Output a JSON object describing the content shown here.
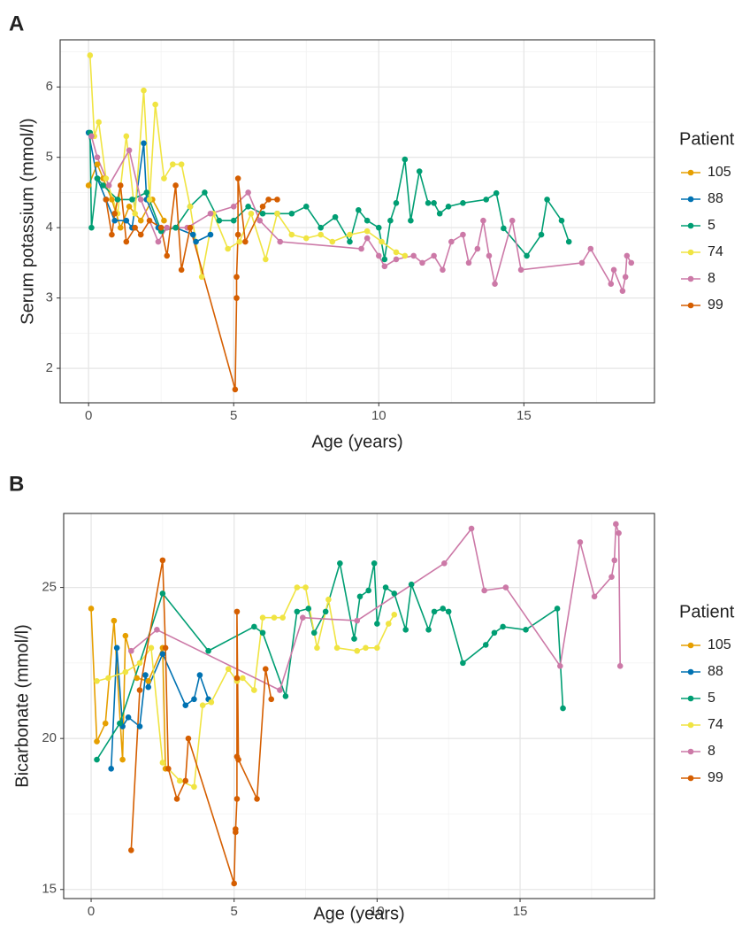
{
  "chart_data": [
    {
      "type": "line",
      "tag": "A",
      "y_label": "Serum potassium (mmol/l)",
      "x_label": "Age (years)",
      "legend_title": "Patient",
      "xlim": [
        -0.98,
        19.5
      ],
      "ylim": [
        1.51,
        6.67
      ],
      "xticks": [
        0,
        5,
        10,
        15
      ],
      "yticks": [
        2,
        3,
        4,
        5,
        6
      ],
      "grid": true,
      "legend": "right",
      "series": [
        {
          "name": "105",
          "color": "#E69F00",
          "x": [
            0.0,
            0.3,
            0.5,
            0.8,
            1.1,
            1.4,
            1.8,
            2.2,
            2.6
          ],
          "values": [
            4.6,
            4.9,
            4.7,
            4.4,
            4.0,
            4.3,
            4.1,
            4.4,
            4.1
          ]
        },
        {
          "name": "88",
          "color": "#0072B2",
          "x": [
            0.0,
            0.3,
            0.6,
            0.9,
            1.3,
            1.5,
            1.9,
            2.0,
            2.4,
            3.0,
            3.6,
            3.7,
            4.2
          ],
          "values": [
            5.35,
            4.7,
            4.4,
            4.1,
            4.1,
            4.0,
            5.2,
            4.4,
            4.0,
            4.0,
            3.9,
            3.8,
            3.9
          ]
        },
        {
          "name": "5",
          "color": "#009E73",
          "x": [
            0.05,
            0.1,
            0.3,
            0.5,
            1.0,
            1.5,
            2.0,
            2.5,
            3.0,
            3.5,
            4.0,
            4.5,
            5.0,
            5.5,
            6.0,
            6.5,
            7.0,
            7.5,
            8.0,
            8.5,
            9.0,
            9.3,
            9.6,
            10.0,
            10.2,
            10.4,
            10.6,
            10.9,
            11.1,
            11.4,
            11.7,
            11.9,
            12.1,
            12.4,
            12.9,
            13.7,
            14.05,
            14.3,
            15.1,
            15.6,
            15.8,
            16.3,
            16.55
          ],
          "values": [
            5.35,
            4.0,
            4.7,
            4.6,
            4.4,
            4.4,
            4.5,
            3.95,
            4.0,
            4.3,
            4.5,
            4.1,
            4.1,
            4.3,
            4.2,
            4.2,
            4.2,
            4.3,
            4.0,
            4.15,
            3.8,
            4.25,
            4.1,
            4.0,
            3.55,
            4.1,
            4.35,
            4.97,
            4.1,
            4.8,
            4.35,
            4.35,
            4.2,
            4.3,
            4.35,
            4.4,
            4.49,
            3.99,
            3.6,
            3.9,
            4.4,
            4.1,
            3.8
          ]
        },
        {
          "name": "74",
          "color": "#F0E442",
          "x": [
            0.05,
            0.2,
            0.35,
            0.6,
            1.0,
            1.3,
            1.6,
            1.9,
            2.1,
            2.3,
            2.6,
            2.9,
            3.2,
            3.5,
            3.9,
            4.3,
            4.8,
            5.2,
            5.6,
            6.1,
            6.5,
            7.0,
            7.5,
            8.0,
            8.4,
            9.0,
            9.6,
            10.1,
            10.6,
            10.9
          ],
          "values": [
            6.45,
            5.3,
            5.5,
            4.7,
            4.2,
            5.3,
            4.2,
            5.95,
            4.4,
            5.75,
            4.7,
            4.9,
            4.9,
            4.3,
            3.3,
            4.2,
            3.7,
            3.8,
            4.2,
            3.55,
            4.2,
            3.9,
            3.85,
            3.9,
            3.8,
            3.9,
            3.95,
            3.8,
            3.65,
            3.6
          ]
        },
        {
          "name": "8",
          "color": "#CC79A7",
          "x": [
            0.1,
            0.3,
            0.7,
            1.4,
            1.8,
            2.4,
            2.7,
            3.4,
            4.2,
            5.0,
            5.5,
            5.9,
            6.6,
            9.4,
            9.6,
            10.0,
            10.2,
            10.6,
            11.2,
            11.5,
            11.9,
            12.2,
            12.5,
            12.9,
            13.1,
            13.4,
            13.6,
            13.8,
            14.0,
            14.6,
            14.9,
            17.0,
            17.3,
            18.0,
            18.1,
            18.4,
            18.5,
            18.55,
            18.7
          ],
          "values": [
            5.3,
            5.0,
            4.6,
            5.1,
            4.4,
            3.8,
            4.0,
            4.0,
            4.2,
            4.3,
            4.5,
            4.1,
            3.8,
            3.7,
            3.85,
            3.6,
            3.45,
            3.55,
            3.6,
            3.5,
            3.6,
            3.4,
            3.8,
            3.9,
            3.5,
            3.7,
            4.1,
            3.6,
            3.2,
            4.1,
            3.4,
            3.5,
            3.7,
            3.2,
            3.4,
            3.1,
            3.3,
            3.6,
            3.5
          ]
        },
        {
          "name": "99",
          "color": "#D55E00",
          "x": [
            0.6,
            0.8,
            0.9,
            1.1,
            1.3,
            1.6,
            1.8,
            2.1,
            2.5,
            2.7,
            3.0,
            3.2,
            3.5,
            5.05,
            5.1,
            5.1,
            5.15,
            5.15,
            5.4,
            6.0,
            6.2,
            6.5
          ],
          "values": [
            4.4,
            3.9,
            4.2,
            4.6,
            3.8,
            4.0,
            3.9,
            4.1,
            4.0,
            3.6,
            4.6,
            3.4,
            4.0,
            1.7,
            3.0,
            3.3,
            3.9,
            4.7,
            3.8,
            4.3,
            4.4,
            4.4
          ]
        }
      ]
    },
    {
      "type": "line",
      "tag": "B",
      "y_label": "Bicarbonate (mmol/l)",
      "x_label": "Age (years)",
      "legend_title": "Patient",
      "xlim": [
        -0.96,
        19.7
      ],
      "ylim": [
        14.7,
        27.45
      ],
      "xticks": [
        0,
        5,
        10,
        15
      ],
      "yticks": [
        15,
        20,
        25
      ],
      "grid": true,
      "legend": "right",
      "series": [
        {
          "name": "105",
          "color": "#E69F00",
          "x": [
            0.0,
            0.2,
            0.5,
            0.8,
            1.1,
            1.2,
            1.6,
            2.0,
            2.5,
            2.6
          ],
          "values": [
            24.3,
            19.9,
            20.5,
            23.9,
            19.3,
            23.4,
            22.0,
            21.9,
            23.0,
            19.0
          ]
        },
        {
          "name": "88",
          "color": "#0072B2",
          "x": [
            0.7,
            0.9,
            1.1,
            1.3,
            1.7,
            1.9,
            2.0,
            2.5,
            3.3,
            3.6,
            3.8,
            4.1
          ],
          "values": [
            19.0,
            23.0,
            20.4,
            20.7,
            20.4,
            22.1,
            21.7,
            22.8,
            21.1,
            21.3,
            22.1,
            21.3
          ]
        },
        {
          "name": "5",
          "color": "#009E73",
          "x": [
            0.2,
            1.0,
            2.5,
            4.1,
            5.7,
            6.0,
            6.8,
            7.2,
            7.6,
            7.8,
            8.2,
            8.7,
            9.2,
            9.4,
            9.7,
            9.9,
            10.0,
            10.3,
            10.6,
            11.0,
            11.2,
            11.8,
            12.0,
            12.3,
            12.5,
            13.0,
            13.8,
            14.1,
            14.4,
            15.2,
            16.3,
            16.5
          ],
          "values": [
            19.3,
            20.5,
            24.8,
            22.9,
            23.7,
            23.5,
            21.4,
            24.2,
            24.3,
            23.5,
            24.2,
            25.8,
            23.3,
            24.7,
            24.9,
            25.8,
            23.8,
            25.0,
            24.8,
            23.6,
            25.1,
            23.6,
            24.2,
            24.3,
            24.2,
            22.5,
            23.1,
            23.5,
            23.7,
            23.6,
            24.3,
            21.0
          ]
        },
        {
          "name": "74",
          "color": "#F0E442",
          "x": [
            0.2,
            0.6,
            1.2,
            1.7,
            2.1,
            2.5,
            3.1,
            3.6,
            3.9,
            4.2,
            4.8,
            5.1,
            5.3,
            5.7,
            6.0,
            6.4,
            6.7,
            7.2,
            7.5,
            7.9,
            8.3,
            8.6,
            9.3,
            9.6,
            10.0,
            10.4,
            10.6
          ],
          "values": [
            21.9,
            22.0,
            22.2,
            22.5,
            23.0,
            19.2,
            18.6,
            18.4,
            21.1,
            21.2,
            22.3,
            21.9,
            22.0,
            21.6,
            24.0,
            24.0,
            24.0,
            25.0,
            25.0,
            23.0,
            24.6,
            23.0,
            22.9,
            23.0,
            23.0,
            23.8,
            24.1
          ]
        },
        {
          "name": "8",
          "color": "#CC79A7",
          "x": [
            1.4,
            2.3,
            6.6,
            7.4,
            9.3,
            12.35,
            13.3,
            13.75,
            14.5,
            16.4,
            17.1,
            17.6,
            18.2,
            18.3,
            18.35,
            18.45,
            18.5
          ],
          "values": [
            22.9,
            23.6,
            21.6,
            24.0,
            23.9,
            25.8,
            26.95,
            24.9,
            25.0,
            22.4,
            26.5,
            24.7,
            25.35,
            25.9,
            27.1,
            26.8,
            22.4
          ]
        },
        {
          "name": "99",
          "color": "#D55E00",
          "x": [
            1.4,
            1.7,
            2.5,
            2.6,
            2.7,
            3.0,
            3.3,
            3.4,
            5.0,
            5.05,
            5.05,
            5.1,
            5.1,
            5.1,
            5.1,
            5.15,
            5.8,
            6.1,
            6.3
          ],
          "values": [
            16.3,
            21.6,
            25.9,
            23.0,
            19.0,
            18.0,
            18.6,
            20.0,
            15.2,
            17.0,
            16.9,
            18.0,
            19.4,
            22.0,
            24.2,
            19.3,
            18.0,
            22.3,
            21.3
          ]
        }
      ]
    }
  ]
}
